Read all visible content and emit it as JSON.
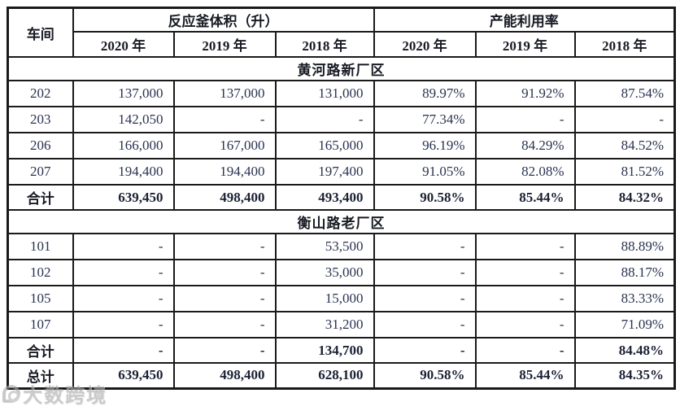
{
  "table": {
    "corner_header": "车间",
    "group_headers": [
      "反应釜体积（升）",
      "产能利用率"
    ],
    "year_headers": [
      "2020 年",
      "2019 年",
      "2018 年",
      "2020 年",
      "2019 年",
      "2018 年"
    ],
    "rows": [
      {
        "type": "section",
        "label": "黄河路新厂区"
      },
      {
        "type": "data",
        "label": "202",
        "values": [
          "137,000",
          "137,000",
          "131,000",
          "89.97%",
          "91.92%",
          "87.54%"
        ]
      },
      {
        "type": "data",
        "label": "203",
        "values": [
          "142,050",
          "-",
          "-",
          "77.34%",
          "-",
          "-"
        ]
      },
      {
        "type": "data",
        "label": "206",
        "values": [
          "166,000",
          "167,000",
          "165,000",
          "96.19%",
          "84.29%",
          "84.52%"
        ]
      },
      {
        "type": "data",
        "label": "207",
        "values": [
          "194,400",
          "194,400",
          "197,400",
          "91.05%",
          "82.08%",
          "81.52%"
        ]
      },
      {
        "type": "total",
        "label": "合计",
        "values": [
          "639,450",
          "498,400",
          "493,400",
          "90.58%",
          "85.44%",
          "84.32%"
        ]
      },
      {
        "type": "section",
        "label": "衡山路老厂区"
      },
      {
        "type": "data",
        "label": "101",
        "values": [
          "-",
          "-",
          "53,500",
          "-",
          "-",
          "88.89%"
        ]
      },
      {
        "type": "data",
        "label": "102",
        "values": [
          "-",
          "-",
          "35,000",
          "-",
          "-",
          "88.17%"
        ]
      },
      {
        "type": "data",
        "label": "105",
        "values": [
          "-",
          "-",
          "15,000",
          "-",
          "-",
          "83.33%"
        ]
      },
      {
        "type": "data",
        "label": "107",
        "values": [
          "-",
          "-",
          "31,200",
          "-",
          "-",
          "71.09%"
        ]
      },
      {
        "type": "total",
        "label": "合计",
        "values": [
          "-",
          "-",
          "134,700",
          "-",
          "-",
          "84.48%"
        ]
      },
      {
        "type": "total",
        "label": "总计",
        "values": [
          "639,450",
          "498,400",
          "628,100",
          "90.58%",
          "85.44%",
          "84.35%"
        ]
      }
    ]
  },
  "watermark": {
    "text": "大数跨境"
  },
  "colors": {
    "border": "#1a1a1a",
    "number_text": "#2a3350",
    "header_text": "#181b24",
    "watermark_gray": "#ababad",
    "background": "#ffffff"
  }
}
